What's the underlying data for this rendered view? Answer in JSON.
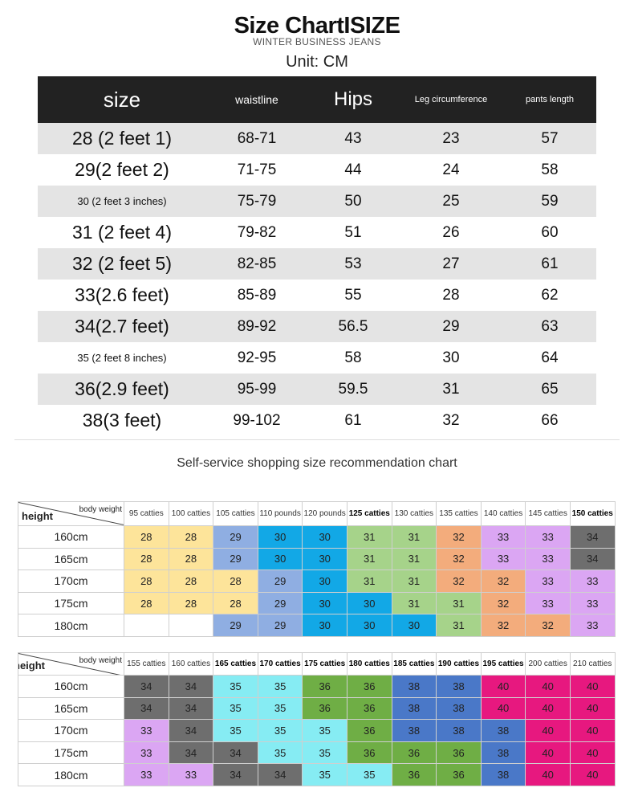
{
  "title": "Size ChartISIZE",
  "subtitle": "WINTER BUSINESS JEANS",
  "unit": "Unit: CM",
  "size_table": {
    "headers": [
      "size",
      "waistline",
      "Hips",
      "Leg circumference",
      "pants length"
    ],
    "rows": [
      {
        "size": "28 (2 feet 1)",
        "waistline": "68-71",
        "hips": "43",
        "leg": "23",
        "length": "57"
      },
      {
        "size": "29(2 feet 2)",
        "waistline": "71-75",
        "hips": "44",
        "leg": "24",
        "length": "58"
      },
      {
        "size": "30 (2 feet 3 inches)",
        "waistline": "75-79",
        "hips": "50",
        "leg": "25",
        "length": "59"
      },
      {
        "size": "31 (2 feet 4)",
        "waistline": "79-82",
        "hips": "51",
        "leg": "26",
        "length": "60"
      },
      {
        "size": "32 (2 feet 5)",
        "waistline": "82-85",
        "hips": "53",
        "leg": "27",
        "length": "61"
      },
      {
        "size": "33(2.6 feet)",
        "waistline": "85-89",
        "hips": "55",
        "leg": "28",
        "length": "62"
      },
      {
        "size": "34(2.7 feet)",
        "waistline": "89-92",
        "hips": "56.5",
        "leg": "29",
        "length": "63"
      },
      {
        "size": "35 (2 feet 8 inches)",
        "waistline": "92-95",
        "hips": "58",
        "leg": "30",
        "length": "64"
      },
      {
        "size": "36(2.9 feet)",
        "waistline": "95-99",
        "hips": "59.5",
        "leg": "31",
        "length": "65"
      },
      {
        "size": "38(3 feet)",
        "waistline": "99-102",
        "hips": "61",
        "leg": "32",
        "length": "66"
      }
    ]
  },
  "recommendation_title": "Self-service shopping size recommendation chart",
  "rec_table_1": {
    "height_label": "height",
    "weight_label": "body weight",
    "weights": [
      "95 catties",
      "100 catties",
      "105 catties",
      "110 pounds",
      "120 pounds",
      "125 catties",
      "130 catties",
      "135 catties",
      "140 catties",
      "145 catties",
      "150 catties"
    ],
    "heights": [
      "160cm",
      "165cm",
      "170cm",
      "175cm",
      "180cm"
    ],
    "values": [
      [
        "28",
        "28",
        "29",
        "30",
        "30",
        "31",
        "31",
        "32",
        "33",
        "33",
        "34"
      ],
      [
        "28",
        "28",
        "29",
        "30",
        "30",
        "31",
        "31",
        "32",
        "33",
        "33",
        "34"
      ],
      [
        "28",
        "28",
        "28",
        "29",
        "30",
        "31",
        "31",
        "32",
        "32",
        "33",
        "33"
      ],
      [
        "28",
        "28",
        "28",
        "29",
        "30",
        "30",
        "31",
        "31",
        "32",
        "33",
        "33"
      ],
      [
        "",
        "",
        "29",
        "29",
        "30",
        "30",
        "30",
        "31",
        "32",
        "32",
        "33"
      ]
    ]
  },
  "rec_table_2": {
    "height_label": "height",
    "weight_label": "body weight",
    "weights": [
      "155 catties",
      "160 catties",
      "165 catties",
      "170 catties",
      "175 catties",
      "180 catties",
      "185 catties",
      "190 catties",
      "195 catties",
      "200 catties",
      "210 catties"
    ],
    "heights": [
      "160cm",
      "165cm",
      "170cm",
      "175cm",
      "180cm"
    ],
    "values": [
      [
        "34",
        "34",
        "35",
        "35",
        "36",
        "36",
        "38",
        "38",
        "40",
        "40",
        "40"
      ],
      [
        "34",
        "34",
        "35",
        "35",
        "36",
        "36",
        "38",
        "38",
        "40",
        "40",
        "40"
      ],
      [
        "33",
        "34",
        "35",
        "35",
        "35",
        "36",
        "38",
        "38",
        "38",
        "40",
        "40"
      ],
      [
        "33",
        "34",
        "34",
        "35",
        "35",
        "36",
        "36",
        "36",
        "38",
        "40",
        "40"
      ],
      [
        "33",
        "33",
        "34",
        "34",
        "35",
        "35",
        "36",
        "36",
        "38",
        "40",
        "40"
      ]
    ]
  },
  "size_colors": {
    "28": "#fde49a",
    "29": "#8faee2",
    "30": "#12a8e6",
    "31": "#a6d38a",
    "32": "#f3ac7c",
    "33": "#dba6f3",
    "34": "#6e6e6e",
    "35": "#86ecf3",
    "36": "#6fae45",
    "38": "#4a78c8",
    "40": "#e7187f"
  },
  "bold_weight_headers": [
    "125 catties",
    "150 catties",
    "165 catties",
    "170 catties",
    "175 catties",
    "180 catties",
    "185 catties",
    "190 catties",
    "195 catties"
  ]
}
